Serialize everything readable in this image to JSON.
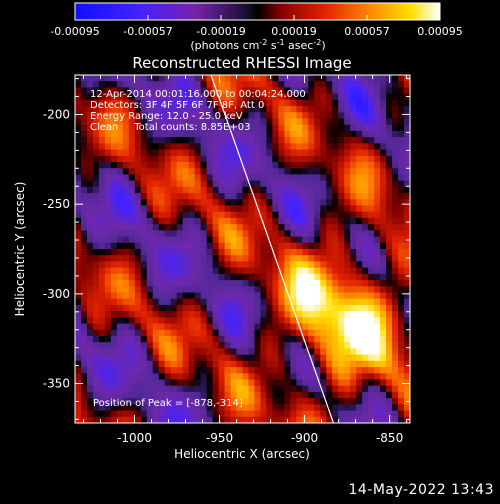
{
  "colorbar": {
    "tick_labels": [
      "-0.00095",
      "-0.00057",
      "-0.00019",
      "0.00019",
      "0.00057",
      "0.00095"
    ],
    "units_prefix": "(photons cm",
    "units_sup1": "-2",
    "units_mid": " s",
    "units_sup2": "-1",
    "units_mid2": " asec",
    "units_sup3": "-2",
    "units_suffix": ")"
  },
  "annotations": {
    "line1": "12-Apr-2014 00:01:16.000 to 00:04:24.000",
    "line2": "Detectors: 3F 4F 5F 6F 7F 8F, Att 0",
    "line3": "Energy Range: 12.0 - 25.0 keV",
    "line4": "Clean     Total counts: 8.85E+03",
    "peak": "Position of Peak = [-878,-314]"
  },
  "footer": {
    "timestamp": "14-May-2022 13:43"
  },
  "chart_data": {
    "type": "heatmap",
    "title": "Reconstructed RHESSI Image",
    "xlabel": "Heliocentric X (arcsec)",
    "ylabel": "Heliocentric Y (arcsec)",
    "xlim": [
      -1035,
      -838
    ],
    "ylim": [
      -372,
      -178
    ],
    "xticks": [
      -1000,
      -950,
      -900,
      -850
    ],
    "yticks": [
      -200,
      -250,
      -300,
      -350
    ],
    "colorbar_range": [
      -0.00095,
      0.00095
    ],
    "colormap": "blue-purple-black-red-orange-yellow-white",
    "peak": [
      -878,
      -314
    ],
    "limb_line": {
      "x_top": -955,
      "x_bottom": -883
    }
  }
}
